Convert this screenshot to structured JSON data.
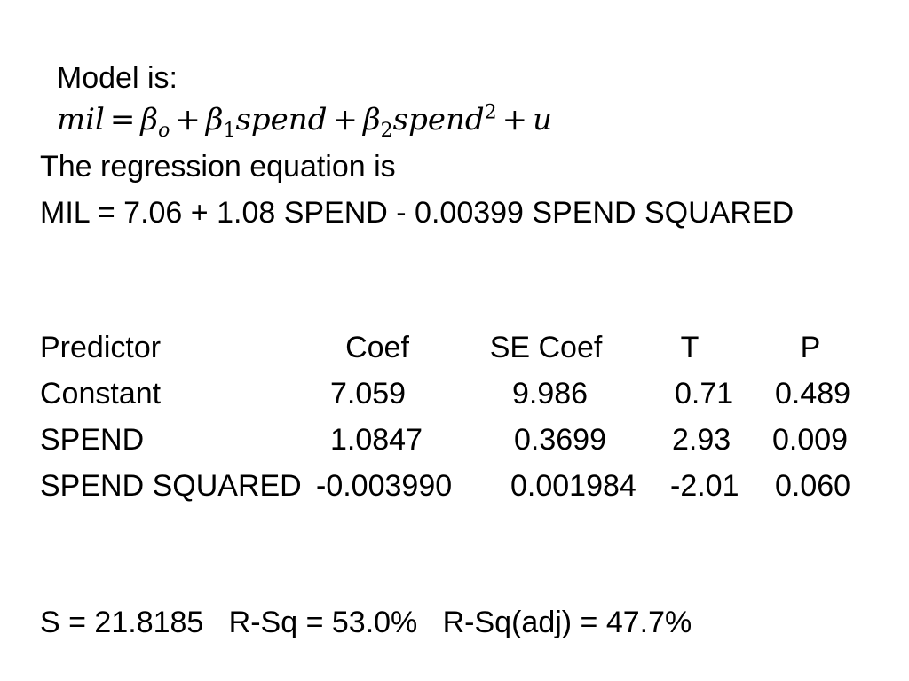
{
  "model": {
    "label": "Model is:",
    "lhs": "mil",
    "eq": "=",
    "beta": "β",
    "sub0": "o",
    "plus": "+",
    "sub1": "1",
    "sub2": "2",
    "var": "spend",
    "sup2": "2",
    "u": "u"
  },
  "regression": {
    "heading": "The regression equation is",
    "equation": "MIL = 7.06 + 1.08 SPEND - 0.00399 SPEND SQUARED"
  },
  "table": {
    "headers": [
      "Predictor",
      "Coef",
      "SE Coef",
      "T",
      "P"
    ],
    "rows": [
      {
        "predictor": "Constant",
        "coef": "7.059",
        "se_coef": "9.986",
        "t": "0.71",
        "p": "0.489"
      },
      {
        "predictor": "SPEND",
        "coef": "1.0847",
        "se_coef": "0.3699",
        "t": "2.93",
        "p": "0.009"
      },
      {
        "predictor": "SPEND SQUARED",
        "coef": "-0.003990",
        "se_coef": "0.001984",
        "t": "-2.01",
        "p": "0.060"
      }
    ]
  },
  "summary": {
    "text": "S = 21.8185   R-Sq = 53.0%   R-Sq(adj) = 47.7%"
  }
}
